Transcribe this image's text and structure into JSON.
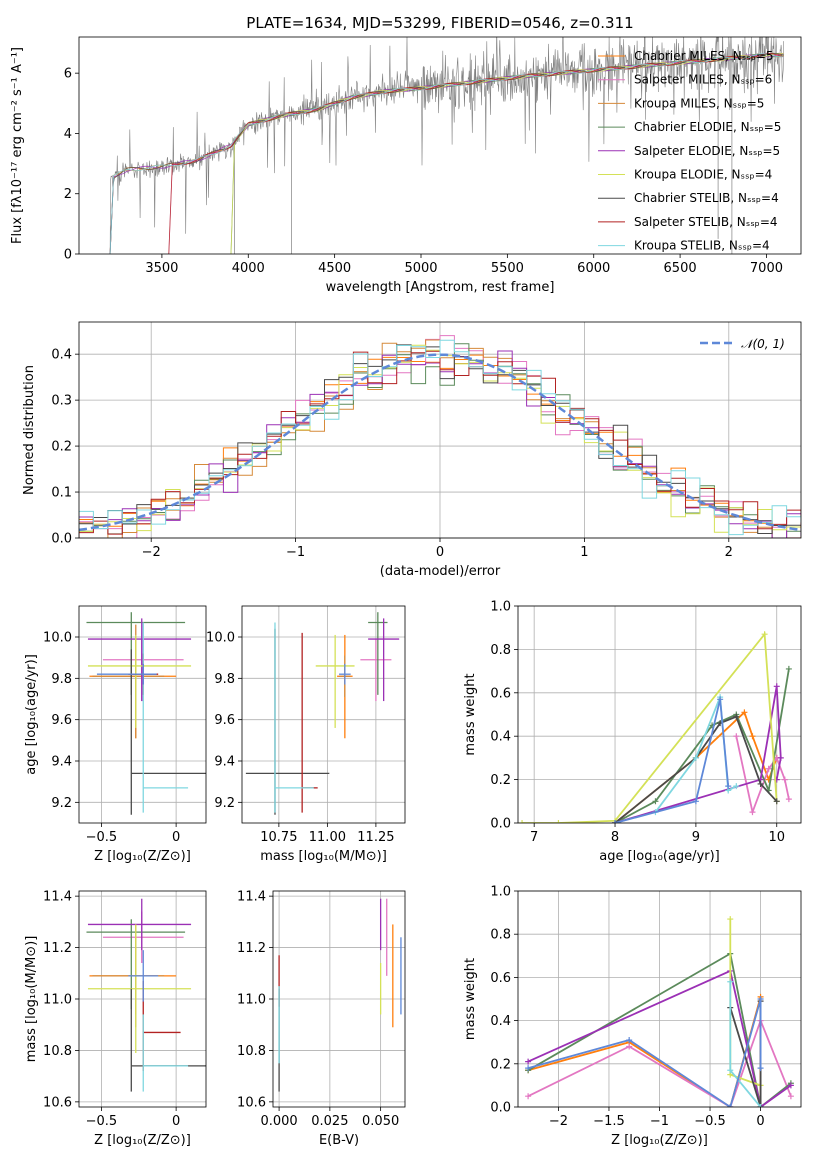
{
  "colors": [
    "#ff7f0e",
    "#e377c2",
    "#d68a3a",
    "#5b8a5b",
    "#9b30b5",
    "#d4e157",
    "#4a4a4a",
    "#b22222",
    "#7fd7e0",
    "#6b8e23",
    "#5e88d8"
  ],
  "chart_data": [
    {
      "id": "spectrum",
      "type": "line",
      "title": "PLATE=1634, MJD=53299, FIBERID=0546, z=0.311",
      "xlabel": "wavelength [Angstrom, rest frame]",
      "ylabel": "Flux [fλ10⁻¹⁷ erg cm⁻² s⁻¹ A⁻¹]",
      "xlim": [
        3020,
        7200
      ],
      "ylim": [
        0,
        7.2
      ],
      "xticks": [
        3500,
        4000,
        4500,
        5000,
        5500,
        6000,
        6500,
        7000
      ],
      "yticks": [
        0,
        2,
        4,
        6
      ],
      "data_wave_range": [
        3200,
        7100
      ],
      "model_anchors": [
        [
          3200,
          2.5
        ],
        [
          3300,
          2.8
        ],
        [
          3500,
          2.9
        ],
        [
          3700,
          3.1
        ],
        [
          3900,
          3.6
        ],
        [
          4000,
          4.3
        ],
        [
          4200,
          4.6
        ],
        [
          4400,
          4.8
        ],
        [
          4600,
          5.2
        ],
        [
          4800,
          5.4
        ],
        [
          5000,
          5.5
        ],
        [
          5300,
          5.7
        ],
        [
          5600,
          5.9
        ],
        [
          6000,
          6.1
        ],
        [
          6400,
          6.3
        ],
        [
          7000,
          6.6
        ],
        [
          7100,
          6.6
        ]
      ],
      "legend": [
        "Chabrier MILES, Nₛₛₚ=5",
        "Salpeter MILES, Nₛₛₚ=6",
        "Kroupa MILES, Nₛₛₚ=5",
        "Chabrier ELODIE, Nₛₛₚ=5",
        "Salpeter ELODIE, Nₛₛₚ=5",
        "Kroupa ELODIE, Nₛₛₚ=4",
        "Chabrier STELIB, Nₛₛₚ=4",
        "Salpeter STELIB, Nₛₛₚ=4",
        "Kroupa STELIB, Nₛₛₚ=4"
      ],
      "legend_placement": "upper-right",
      "grid": false
    },
    {
      "id": "residuals",
      "type": "line",
      "xlabel": "(data-model)/error",
      "ylabel": "Normed distribution",
      "xlim": [
        -2.5,
        2.5
      ],
      "ylim": [
        0,
        0.47
      ],
      "xticks": [
        -2,
        -1,
        0,
        1,
        2
      ],
      "yticks": [
        0,
        0.1,
        0.2,
        0.3,
        0.4
      ],
      "reference_curve": {
        "name": "𝒩(0, 1)",
        "mu": 0,
        "sigma": 1
      },
      "bin_width": 0.1,
      "legend_placement": "upper-right",
      "grid": true
    },
    {
      "id": "age-vs-Z",
      "type": "scatter",
      "xlabel": "Z [log₁₀(Z/Z⊙)]",
      "ylabel": "age  [log₁₀(age/yr)]",
      "xlim": [
        -0.65,
        0.2
      ],
      "ylim": [
        9.1,
        10.15
      ],
      "xticks": [
        -0.5,
        0.0
      ],
      "yticks": [
        9.2,
        9.4,
        9.6,
        9.8,
        10.0
      ],
      "grid": true,
      "points": [
        {
          "c": 0,
          "x": -0.27,
          "xerr": [
            0.31,
            0.27
          ],
          "y": 9.81,
          "yerr": [
            0.3,
            0.2
          ]
        },
        {
          "c": 1,
          "x": -0.23,
          "xerr": [
            0.26,
            0.28
          ],
          "y": 9.89,
          "yerr": [
            0.2,
            0.1
          ]
        },
        {
          "c": 2,
          "x": -0.27,
          "xerr": [
            0.29,
            0.19
          ],
          "y": 9.81,
          "yerr": [
            0.3,
            0.25
          ]
        },
        {
          "c": 3,
          "x": -0.3,
          "xerr": [
            0.3,
            0.36
          ],
          "y": 10.07,
          "yerr": [
            0.35,
            0.05
          ]
        },
        {
          "c": 4,
          "x": -0.23,
          "xerr": [
            0.36,
            0.33
          ],
          "y": 9.99,
          "yerr": [
            0.3,
            0.1
          ]
        },
        {
          "c": 5,
          "x": -0.27,
          "xerr": [
            0.32,
            0.37
          ],
          "y": 9.86,
          "yerr": [
            0.3,
            0.15
          ]
        },
        {
          "c": 6,
          "x": -0.3,
          "xerr": [
            0.0,
            0.5
          ],
          "y": 9.34,
          "yerr": [
            0.2,
            0.6
          ]
        },
        {
          "c": 7,
          "x": -0.22,
          "xerr": [
            0.1,
            0.1
          ],
          "y": 9.82,
          "yerr": [
            0.1,
            0.1
          ]
        },
        {
          "c": 8,
          "x": -0.22,
          "xerr": [
            0.0,
            0.3
          ],
          "y": 9.27,
          "yerr": [
            0.12,
            0.8
          ]
        },
        {
          "c": 10,
          "x": -0.22,
          "xerr": [
            0.31,
            0.09
          ],
          "y": 9.82,
          "yerr": [
            0.05,
            0.05
          ]
        }
      ]
    },
    {
      "id": "age-vs-mass",
      "type": "scatter",
      "xlabel": "mass [log₁₀(M/M⊙)]",
      "ylabel": "",
      "xlim": [
        10.56,
        11.4
      ],
      "ylim": [
        9.1,
        10.15
      ],
      "xticks": [
        10.75,
        11.0,
        11.25
      ],
      "tick_labels": [
        "10.75",
        "11.00",
        "11.25"
      ],
      "yticks": [
        9.2,
        9.4,
        9.6,
        9.8,
        10.0
      ],
      "grid": true,
      "points": [
        {
          "c": 0,
          "x": 11.09,
          "xerr": [
            0.04,
            0.04
          ],
          "y": 9.81,
          "yerr": [
            0.3,
            0.2
          ]
        },
        {
          "c": 1,
          "x": 11.25,
          "xerr": [
            0.08,
            0.08
          ],
          "y": 9.89,
          "yerr": [
            0.2,
            0.1
          ]
        },
        {
          "c": 2,
          "x": 11.09,
          "xerr": [
            0.03,
            0.03
          ],
          "y": 9.81,
          "yerr": [
            0.1,
            0.1
          ]
        },
        {
          "c": 3,
          "x": 11.26,
          "xerr": [
            0.05,
            0.05
          ],
          "y": 10.07,
          "yerr": [
            0.35,
            0.05
          ]
        },
        {
          "c": 4,
          "x": 11.29,
          "xerr": [
            0.08,
            0.08
          ],
          "y": 9.99,
          "yerr": [
            0.3,
            0.1
          ]
        },
        {
          "c": 5,
          "x": 11.04,
          "xerr": [
            0.1,
            0.1
          ],
          "y": 9.86,
          "yerr": [
            0.3,
            0.15
          ]
        },
        {
          "c": 6,
          "x": 10.73,
          "xerr": [
            0.15,
            0.28
          ],
          "y": 9.34,
          "yerr": [
            0.2,
            0.7
          ]
        },
        {
          "c": 7,
          "x": 10.87,
          "xerr": [
            0.0,
            0.08
          ],
          "y": 9.27,
          "yerr": [
            0.12,
            0.75
          ]
        },
        {
          "c": 8,
          "x": 10.73,
          "xerr": [
            0.0,
            0.2
          ],
          "y": 9.27,
          "yerr": [
            0.12,
            0.8
          ]
        },
        {
          "c": 10,
          "x": 11.09,
          "xerr": [
            0.03,
            0.03
          ],
          "y": 9.82,
          "yerr": [
            0.05,
            0.05
          ]
        }
      ]
    },
    {
      "id": "weight-vs-age",
      "type": "line",
      "xlabel": "age  [log₁₀(age/yr)]",
      "ylabel": "mass weight",
      "xlim": [
        6.8,
        10.3
      ],
      "ylim": [
        0,
        1.0
      ],
      "xticks": [
        7,
        8,
        9,
        10
      ],
      "yticks": [
        0,
        0.2,
        0.4,
        0.6,
        0.8,
        1.0
      ],
      "grid": true,
      "series": [
        {
          "c": 0,
          "x": [
            8.0,
            9.0,
            9.6,
            9.7,
            9.9,
            10.0
          ],
          "y": [
            0.0,
            0.3,
            0.51,
            0.4,
            0.2,
            0.3
          ]
        },
        {
          "c": 1,
          "x": [
            9.5,
            9.7,
            9.9,
            10.0,
            10.1,
            10.15
          ],
          "y": [
            0.4,
            0.05,
            0.25,
            0.3,
            0.2,
            0.11
          ]
        },
        {
          "c": 3,
          "x": [
            8.0,
            8.5,
            9.2,
            9.5,
            9.9,
            10.15
          ],
          "y": [
            0.0,
            0.1,
            0.45,
            0.5,
            0.15,
            0.71
          ]
        },
        {
          "c": 4,
          "x": [
            8.0,
            9.8,
            10.0,
            10.05,
            10.0
          ],
          "y": [
            0.0,
            0.2,
            0.63,
            0.3,
            0.2
          ]
        },
        {
          "c": 5,
          "x": [
            6.85,
            7.3,
            8.0,
            9.85,
            10.0
          ],
          "y": [
            0.0,
            0.0,
            0.01,
            0.87,
            0.1
          ]
        },
        {
          "c": 6,
          "x": [
            8.0,
            9.0,
            9.3,
            9.5,
            9.8,
            10.0
          ],
          "y": [
            0.0,
            0.3,
            0.46,
            0.49,
            0.18,
            0.1
          ]
        },
        {
          "c": 8,
          "x": [
            8.5,
            9.0,
            9.3,
            9.4,
            9.5
          ],
          "y": [
            0.05,
            0.3,
            0.58,
            0.15,
            0.17
          ]
        },
        {
          "c": 10,
          "x": [
            8.0,
            9.0,
            9.3,
            9.4
          ],
          "y": [
            0.0,
            0.1,
            0.57,
            0.17
          ]
        }
      ]
    },
    {
      "id": "mass-vs-Z",
      "type": "scatter",
      "xlabel": "Z [log₁₀(Z/Z⊙)]",
      "ylabel": "mass [log₁₀(M/M⊙)]",
      "xlim": [
        -0.65,
        0.2
      ],
      "ylim": [
        10.58,
        11.42
      ],
      "xticks": [
        -0.5,
        0.0
      ],
      "yticks": [
        10.6,
        10.8,
        11.0,
        11.2,
        11.4
      ],
      "grid": true,
      "points": [
        {
          "c": 0,
          "x": -0.27,
          "xerr": [
            0.31,
            0.27
          ],
          "y": 11.09,
          "yerr": [
            0.15,
            0.15
          ]
        },
        {
          "c": 1,
          "x": -0.23,
          "xerr": [
            0.26,
            0.28
          ],
          "y": 11.24,
          "yerr": [
            0.1,
            0.1
          ]
        },
        {
          "c": 2,
          "x": -0.27,
          "xerr": [
            0.29,
            0.19
          ],
          "y": 11.09,
          "yerr": [
            0.2,
            0.2
          ]
        },
        {
          "c": 3,
          "x": -0.3,
          "xerr": [
            0.3,
            0.36
          ],
          "y": 11.26,
          "yerr": [
            0.3,
            0.05
          ]
        },
        {
          "c": 4,
          "x": -0.23,
          "xerr": [
            0.36,
            0.33
          ],
          "y": 11.29,
          "yerr": [
            0.1,
            0.1
          ]
        },
        {
          "c": 5,
          "x": -0.27,
          "xerr": [
            0.32,
            0.37
          ],
          "y": 11.04,
          "yerr": [
            0.25,
            0.25
          ]
        },
        {
          "c": 6,
          "x": -0.3,
          "xerr": [
            0.0,
            0.5
          ],
          "y": 10.74,
          "yerr": [
            0.1,
            0.3
          ]
        },
        {
          "c": 7,
          "x": -0.22,
          "xerr": [
            0.0,
            0.25
          ],
          "y": 10.87,
          "yerr": [
            0.15,
            0.2
          ]
        },
        {
          "c": 8,
          "x": -0.22,
          "xerr": [
            0.0,
            0.3
          ],
          "y": 10.74,
          "yerr": [
            0.1,
            0.2
          ]
        },
        {
          "c": 10,
          "x": -0.22,
          "xerr": [
            0.1,
            0.1
          ],
          "y": 11.09,
          "yerr": [
            0.1,
            0.1
          ]
        }
      ]
    },
    {
      "id": "mass-vs-EBV",
      "type": "scatter",
      "xlabel": "E(B-V)",
      "ylabel": "",
      "xlim": [
        -0.003,
        0.062
      ],
      "ylim": [
        10.58,
        11.42
      ],
      "xticks": [
        0.0,
        0.025,
        0.05
      ],
      "tick_labels": [
        "0.000",
        "0.025",
        "0.050"
      ],
      "yticks": [
        10.6,
        10.8,
        11.0,
        11.2,
        11.4
      ],
      "grid": true,
      "points": [
        {
          "c": 0,
          "x": 0.056,
          "xerr": [
            0,
            0
          ],
          "y": 11.09,
          "yerr": [
            0.2,
            0.2
          ]
        },
        {
          "c": 1,
          "x": 0.053,
          "xerr": [
            0,
            0
          ],
          "y": 11.24,
          "yerr": [
            0.15,
            0.15
          ]
        },
        {
          "c": 4,
          "x": 0.05,
          "xerr": [
            0,
            0
          ],
          "y": 11.29,
          "yerr": [
            0.1,
            0.1
          ]
        },
        {
          "c": 5,
          "x": 0.05,
          "xerr": [
            0,
            0
          ],
          "y": 11.04,
          "yerr": [
            0.1,
            0.1
          ]
        },
        {
          "c": 10,
          "x": 0.06,
          "xerr": [
            0,
            0
          ],
          "y": 11.09,
          "yerr": [
            0.15,
            0.15
          ]
        },
        {
          "c": 6,
          "x": 0.0,
          "xerr": [
            0,
            0
          ],
          "y": 10.74,
          "yerr": [
            0.1,
            0.3
          ]
        },
        {
          "c": 7,
          "x": 0.0,
          "xerr": [
            0,
            0
          ],
          "y": 11.07,
          "yerr": [
            0.1,
            0.1
          ]
        },
        {
          "c": 8,
          "x": 0.0,
          "xerr": [
            0,
            0
          ],
          "y": 10.85,
          "yerr": [
            0.1,
            0.2
          ]
        }
      ]
    },
    {
      "id": "weight-vs-Z",
      "type": "line",
      "xlabel": "Z [log₁₀(Z/Z⊙)]",
      "ylabel": "mass weight",
      "xlim": [
        -2.4,
        0.4
      ],
      "ylim": [
        0,
        1.0
      ],
      "xticks": [
        -2.0,
        -1.5,
        -1.0,
        -0.5,
        0.0
      ],
      "yticks": [
        0,
        0.2,
        0.4,
        0.6,
        0.8,
        1.0
      ],
      "grid": true,
      "series": [
        {
          "c": 0,
          "x": [
            -2.3,
            -1.3,
            -0.3,
            0.0,
            0.0
          ],
          "y": [
            0.17,
            0.3,
            0.0,
            0.51,
            0.0
          ]
        },
        {
          "c": 1,
          "x": [
            -2.3,
            -1.3,
            -0.3,
            0.0,
            0.3
          ],
          "y": [
            0.05,
            0.28,
            0.0,
            0.4,
            0.05
          ]
        },
        {
          "c": 3,
          "x": [
            -2.3,
            -0.3,
            0.0,
            0.3
          ],
          "y": [
            0.17,
            0.71,
            0.0,
            0.11
          ]
        },
        {
          "c": 4,
          "x": [
            -2.3,
            -0.3,
            0.0,
            0.3
          ],
          "y": [
            0.21,
            0.63,
            0.0,
            0.1
          ]
        },
        {
          "c": 5,
          "x": [
            -0.3,
            -0.3,
            0.0
          ],
          "y": [
            0.87,
            0.15,
            0.1
          ]
        },
        {
          "c": 6,
          "x": [
            -0.3,
            0.0,
            0.0
          ],
          "y": [
            0.46,
            0.0,
            0.49
          ]
        },
        {
          "c": 8,
          "x": [
            -0.3,
            -0.3,
            0.0
          ],
          "y": [
            0.58,
            0.17,
            0.0
          ]
        },
        {
          "c": 10,
          "x": [
            -2.3,
            -1.3,
            -0.3,
            0.0,
            0.0
          ],
          "y": [
            0.18,
            0.31,
            0.0,
            0.5,
            0.18
          ]
        }
      ]
    }
  ]
}
